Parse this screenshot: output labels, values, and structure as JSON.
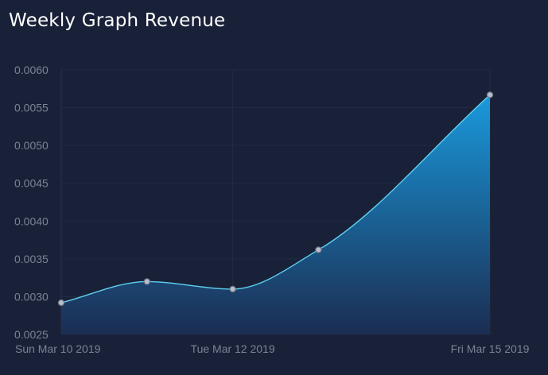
{
  "header": {
    "title": "Weekly Graph Revenue"
  },
  "chart_data": {
    "type": "area",
    "title": "Weekly Graph Revenue",
    "xlabel": "",
    "ylabel": "",
    "x_domain": [
      "2019-03-10",
      "2019-03-15"
    ],
    "x_ticks": [
      {
        "date": "2019-03-10",
        "label": "Sun Mar 10 2019"
      },
      {
        "date": "2019-03-12",
        "label": "Tue Mar 12 2019"
      },
      {
        "date": "2019-03-15",
        "label": "Fri Mar 15 2019"
      }
    ],
    "ylim": [
      0.0025,
      0.006
    ],
    "y_ticks": [
      "0.0060",
      "0.0055",
      "0.0050",
      "0.0045",
      "0.0040",
      "0.0035",
      "0.0030",
      "0.0025"
    ],
    "grid": true,
    "series": [
      {
        "points": [
          {
            "x": "2019-03-10",
            "y": 0.00292
          },
          {
            "x": "2019-03-11",
            "y": 0.0032
          },
          {
            "x": "2019-03-12",
            "y": 0.0031
          },
          {
            "x": "2019-03-13",
            "y": 0.00362
          },
          {
            "x": "2019-03-15",
            "y": 0.00567
          }
        ]
      }
    ],
    "colors": {
      "line": "#5fd0ef",
      "area_top": "#1a99dc",
      "area_bottom": "#1b2d52",
      "point_fill": "#b8bdc9",
      "point_stroke": "#6e7486"
    }
  }
}
